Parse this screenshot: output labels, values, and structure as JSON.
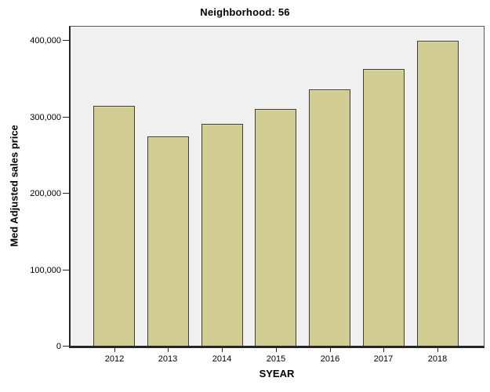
{
  "chart_data": {
    "type": "bar",
    "title": "Neighborhood: 56",
    "xlabel": "SYEAR",
    "ylabel": "Med Adjusted sales price",
    "categories": [
      "2012",
      "2013",
      "2014",
      "2015",
      "2016",
      "2017",
      "2018"
    ],
    "values": [
      314000,
      274000,
      290000,
      310000,
      335000,
      362000,
      399000
    ],
    "ylim": [
      0,
      420000
    ],
    "yticks": [
      0,
      100000,
      200000,
      300000,
      400000
    ],
    "ytick_labels": [
      "0",
      "100,000",
      "200,000",
      "300,000",
      "400,000"
    ],
    "grid": false,
    "legend": false,
    "colors": {
      "bar_fill": "#d2cd93",
      "bar_border": "#3e3e38",
      "plot_bg": "#f0f0f0",
      "axis": "#262626",
      "frame": "#595959",
      "text": "#000000",
      "background": "#ffffff"
    }
  }
}
